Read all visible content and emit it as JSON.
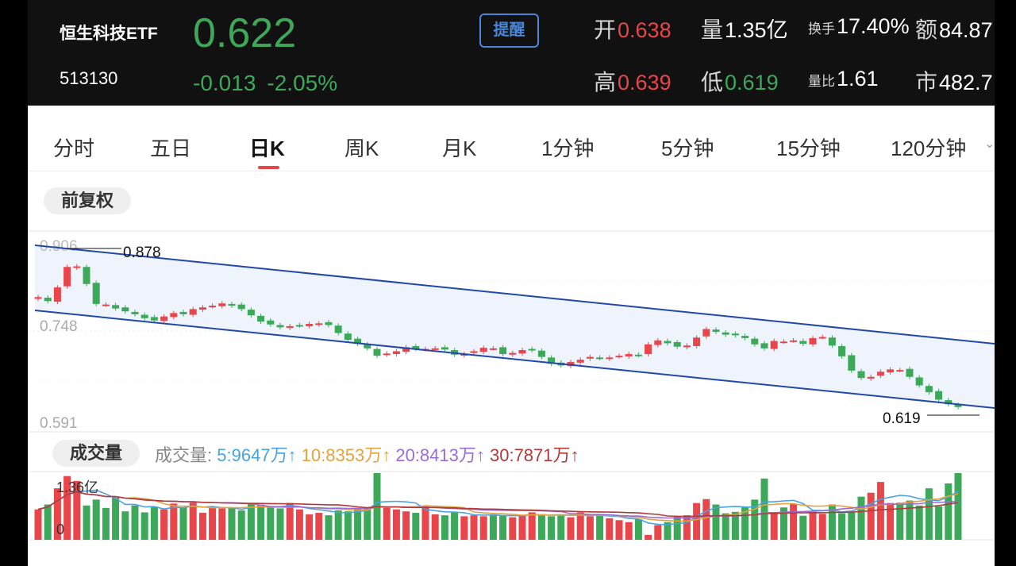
{
  "stock": {
    "name": "恒生科技ETF",
    "code": "513130",
    "price": "0.622",
    "change": "-0.013",
    "change_pct": "-2.05%",
    "alert_label": "提醒"
  },
  "stats": {
    "open": {
      "label": "开",
      "value": "0.638"
    },
    "volume": {
      "label": "量",
      "value": "1.35亿"
    },
    "turnover": {
      "label": "换手",
      "value": "17.40%"
    },
    "amount": {
      "label": "额",
      "value": "84.87"
    },
    "high": {
      "label": "高",
      "value": "0.639"
    },
    "low": {
      "label": "低",
      "value": "0.619"
    },
    "vol_ratio": {
      "label": "量比",
      "value": "1.61"
    },
    "market": {
      "label": "市",
      "value": "482.7"
    }
  },
  "tabs": [
    "分时",
    "五日",
    "日K",
    "周K",
    "月K",
    "1分钟",
    "5分钟",
    "15分钟",
    "120分钟"
  ],
  "active_tab": "日K",
  "adjust_label": "前复权",
  "volume_panel": {
    "title": "成交量",
    "label": "成交量:",
    "ma": [
      {
        "text": "5:9647万↑",
        "color": "#4aa3df"
      },
      {
        "text": "10:8353万↑",
        "color": "#e6a23c"
      },
      {
        "text": "20:8413万↑",
        "color": "#9b6bd6"
      },
      {
        "text": "30:7871万↑",
        "color": "#b03a3a"
      }
    ]
  },
  "colors": {
    "up": "#e8464b",
    "down": "#3ea85a",
    "channel": "#2248a8",
    "channel_fill": "#eef3fc"
  },
  "chart_data": {
    "type": "candlestick",
    "y_ticks": [
      "0.906",
      "0.748",
      "0.591"
    ],
    "ylim": [
      0.591,
      0.906
    ],
    "annotations": {
      "high": "0.878",
      "low": "0.619"
    },
    "volume_y_ticks": [
      "1.36亿",
      "0"
    ],
    "volume_max": 1.36,
    "close": [
      0.815,
      0.808,
      0.832,
      0.868,
      0.869,
      0.838,
      0.803,
      0.802,
      0.795,
      0.79,
      0.785,
      0.778,
      0.774,
      0.781,
      0.787,
      0.785,
      0.794,
      0.797,
      0.8,
      0.804,
      0.8,
      0.794,
      0.783,
      0.772,
      0.767,
      0.762,
      0.764,
      0.765,
      0.768,
      0.769,
      0.766,
      0.752,
      0.74,
      0.733,
      0.725,
      0.712,
      0.716,
      0.72,
      0.727,
      0.724,
      0.724,
      0.725,
      0.723,
      0.714,
      0.715,
      0.72,
      0.726,
      0.725,
      0.715,
      0.717,
      0.722,
      0.722,
      0.71,
      0.698,
      0.695,
      0.701,
      0.705,
      0.71,
      0.708,
      0.709,
      0.712,
      0.715,
      0.713,
      0.732,
      0.739,
      0.734,
      0.728,
      0.73,
      0.744,
      0.759,
      0.754,
      0.749,
      0.748,
      0.743,
      0.732,
      0.725,
      0.738,
      0.737,
      0.739,
      0.733,
      0.743,
      0.745,
      0.73,
      0.711,
      0.686,
      0.673,
      0.675,
      0.684,
      0.688,
      0.687,
      0.675,
      0.66,
      0.648,
      0.635,
      0.627,
      0.622
    ],
    "volume": [
      0.62,
      0.72,
      1.05,
      1.3,
      1.2,
      0.7,
      0.82,
      0.65,
      0.86,
      0.58,
      0.7,
      0.56,
      0.68,
      0.62,
      0.74,
      0.66,
      0.76,
      0.55,
      0.68,
      0.64,
      0.65,
      0.6,
      0.75,
      0.72,
      0.66,
      0.64,
      0.75,
      0.62,
      0.52,
      0.55,
      0.5,
      0.6,
      0.58,
      0.64,
      0.66,
      1.36,
      0.65,
      0.62,
      0.58,
      0.55,
      0.7,
      0.52,
      0.5,
      0.56,
      0.48,
      0.5,
      0.48,
      0.52,
      0.5,
      0.46,
      0.5,
      0.56,
      0.52,
      0.48,
      0.5,
      0.46,
      0.56,
      0.48,
      0.5,
      0.44,
      0.4,
      0.36,
      0.42,
      0.1,
      0.3,
      0.36,
      0.48,
      0.5,
      0.75,
      0.83,
      0.72,
      0.54,
      0.57,
      0.68,
      0.82,
      1.25,
      0.56,
      0.66,
      0.73,
      0.49,
      0.57,
      0.53,
      0.72,
      0.54,
      0.58,
      0.88,
      0.96,
      1.18,
      0.75,
      0.76,
      0.8,
      0.7,
      1.05,
      0.68,
      1.15,
      1.36
    ]
  }
}
